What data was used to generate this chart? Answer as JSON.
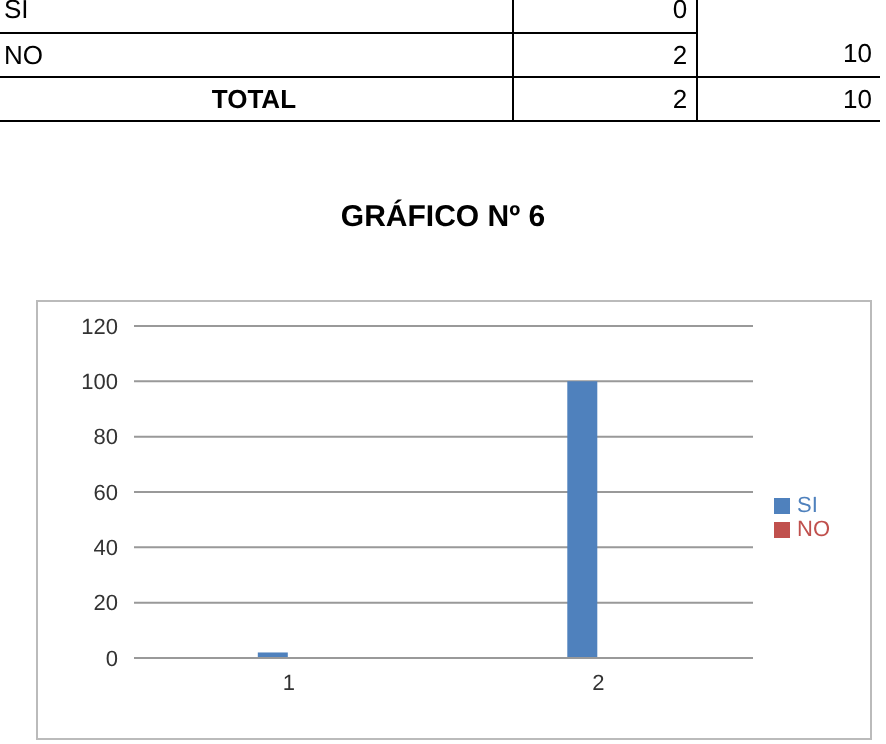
{
  "chart_data": {
    "type": "bar",
    "title": "GRÁFICO Nº 6",
    "annotations": [
      "SI",
      "0",
      "NO",
      "2",
      "10",
      "TOTAL",
      "2",
      "10"
    ],
    "categories": [
      "1",
      "2"
    ],
    "series": [
      {
        "name": "SI",
        "color": "#4f81bd",
        "values": [
          2,
          100
        ]
      },
      {
        "name": "NO",
        "color": "#c0504d",
        "values": [
          0,
          0
        ]
      }
    ],
    "ylim": [
      0,
      120
    ],
    "yticks": [
      0,
      20,
      40,
      60,
      80,
      100,
      120
    ],
    "grid": "y",
    "legend": "right"
  }
}
